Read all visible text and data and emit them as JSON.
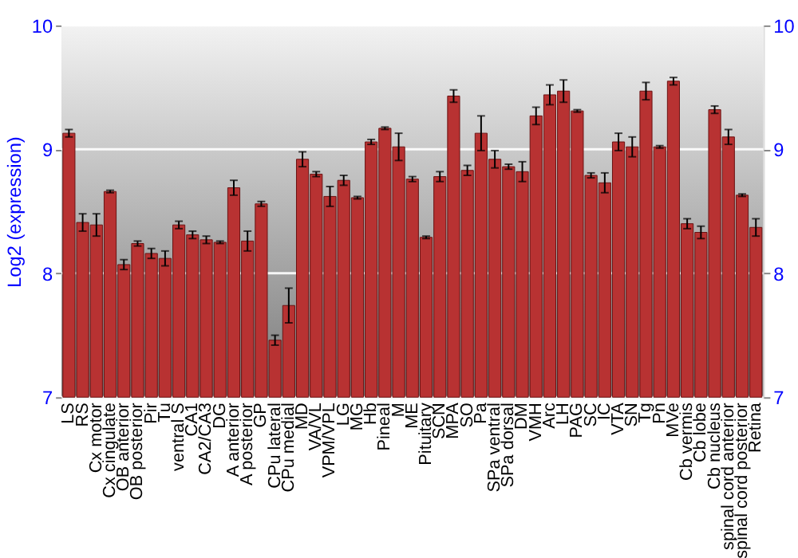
{
  "chart_data": {
    "type": "bar",
    "ylabel": "Log2 (expression)",
    "categories": [
      "LS",
      "RS",
      "Cx motor",
      "Cx cingulate",
      "OB anterior",
      "OB posterior",
      "Pir",
      "Tu",
      "ventral S",
      "CA1",
      "CA2/CA3",
      "DG",
      "A anterior",
      "A posterior",
      "GP",
      "CPu lateral",
      "CPu medial",
      "MD",
      "VA/VL",
      "VPM/VPL",
      "LG",
      "MG",
      "Hb",
      "Pineal",
      "M",
      "ME",
      "Pituitary",
      "SCN",
      "MPA",
      "SO",
      "Pa",
      "SPa ventral",
      "SPa dorsal",
      "DM",
      "VMH",
      "Arc",
      "LH",
      "PAG",
      "SC",
      "IC",
      "VTA",
      "SN",
      "Tg",
      "Pn",
      "MVe",
      "Cb vermis",
      "Cb lobe",
      "Cb nucleus",
      "spinal cord anterior",
      "spinal cord posterior",
      "Retina"
    ],
    "values": [
      9.13,
      8.41,
      8.39,
      8.66,
      8.07,
      8.24,
      8.16,
      8.12,
      8.39,
      8.31,
      8.27,
      8.25,
      8.69,
      8.26,
      8.56,
      7.46,
      7.74,
      8.92,
      8.8,
      8.62,
      8.75,
      8.61,
      9.06,
      9.17,
      9.02,
      8.76,
      8.29,
      8.78,
      9.43,
      8.83,
      9.13,
      8.92,
      8.86,
      8.82,
      9.27,
      9.44,
      9.47,
      9.31,
      8.79,
      8.73,
      9.06,
      9.02,
      9.47,
      9.02,
      9.55,
      8.4,
      8.33,
      9.32,
      9.1,
      8.63,
      8.37
    ],
    "errors": [
      0.03,
      0.07,
      0.09,
      0.01,
      0.04,
      0.02,
      0.04,
      0.06,
      0.03,
      0.03,
      0.03,
      0.01,
      0.06,
      0.08,
      0.02,
      0.04,
      0.14,
      0.06,
      0.02,
      0.08,
      0.04,
      0.01,
      0.02,
      0.01,
      0.11,
      0.02,
      0.01,
      0.04,
      0.05,
      0.04,
      0.14,
      0.07,
      0.02,
      0.08,
      0.07,
      0.08,
      0.09,
      0.01,
      0.02,
      0.08,
      0.07,
      0.08,
      0.07,
      0.01,
      0.03,
      0.04,
      0.05,
      0.03,
      0.06,
      0.01,
      0.07
    ],
    "color": "#b83232",
    "ylim": [
      7,
      10
    ],
    "yticks": [
      7,
      8,
      9,
      10
    ],
    "y2lim": [
      7,
      10
    ],
    "y2ticks": [
      7,
      8,
      9,
      10
    ],
    "grid": "y"
  }
}
